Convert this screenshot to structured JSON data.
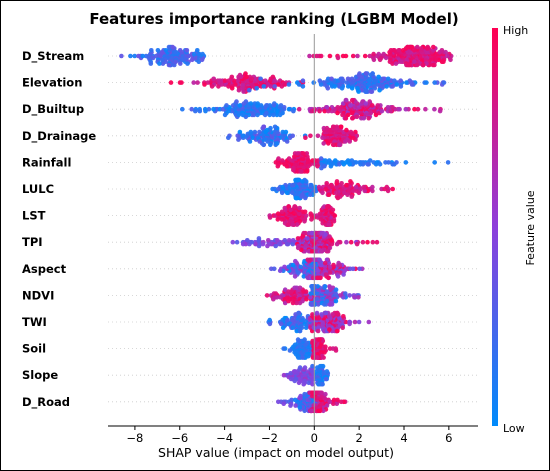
{
  "chart_data": {
    "type": "scatter",
    "subtype": "shap-beeswarm",
    "title": "Features importance ranking (LGBM Model)",
    "xlabel": "SHAP value (impact on model output)",
    "xlim": [
      -9.2,
      7.3
    ],
    "x_ticks": [
      "−8",
      "−6",
      "−4",
      "−2",
      "0",
      "2",
      "4",
      "6"
    ],
    "x_tick_values": [
      -8,
      -6,
      -4,
      -2,
      0,
      2,
      4,
      6
    ],
    "colorbar": {
      "label": "Feature value",
      "high": "High",
      "low": "Low",
      "high_color": "#ff0052",
      "mid_color": "#8e3fdb",
      "low_color": "#008bfb"
    },
    "colors": {
      "high": "#ff0052",
      "low": "#008bfb"
    },
    "grid": false,
    "features": [
      {
        "name": "D_Stream",
        "clusters": [
          {
            "min": -8.7,
            "max": -4.9,
            "center": -6.2,
            "spread": 0.9,
            "count": 140,
            "color_lo": 0.05,
            "color_hi": 0.4
          },
          {
            "min": -0.6,
            "max": 6.2,
            "center": 4.5,
            "spread": 1.1,
            "count": 230,
            "color_lo": 0.7,
            "color_hi": 1.0
          }
        ]
      },
      {
        "name": "Elevation",
        "clusters": [
          {
            "min": -6.4,
            "max": -0.5,
            "center": -3.0,
            "spread": 1.5,
            "count": 150,
            "color_lo": 0.7,
            "color_hi": 1.0
          },
          {
            "min": -3.0,
            "max": 6.1,
            "center": 2.0,
            "spread": 1.8,
            "count": 200,
            "color_lo": 0.0,
            "color_hi": 0.35
          }
        ]
      },
      {
        "name": "D_Builtup",
        "clusters": [
          {
            "min": -6.0,
            "max": -0.6,
            "center": -2.8,
            "spread": 1.2,
            "count": 150,
            "color_lo": 0.0,
            "color_hi": 0.3
          },
          {
            "min": -1.0,
            "max": 5.8,
            "center": 2.0,
            "spread": 1.2,
            "count": 170,
            "color_lo": 0.55,
            "color_hi": 1.0
          }
        ]
      },
      {
        "name": "D_Drainage",
        "clusters": [
          {
            "min": -3.9,
            "max": -0.3,
            "center": -2.2,
            "spread": 0.8,
            "count": 110,
            "color_lo": 0.0,
            "color_hi": 0.4
          },
          {
            "min": -0.5,
            "max": 1.9,
            "center": 1.0,
            "spread": 0.6,
            "count": 110,
            "color_lo": 0.7,
            "color_hi": 1.0
          }
        ]
      },
      {
        "name": "Rainfall",
        "clusters": [
          {
            "min": -1.9,
            "max": 0.3,
            "center": -0.6,
            "spread": 0.55,
            "count": 110,
            "color_lo": 0.8,
            "color_hi": 1.0
          },
          {
            "min": 0.3,
            "max": 6.4,
            "center": 1.5,
            "spread": 1.5,
            "count": 60,
            "color_lo": 0.0,
            "color_hi": 0.25
          }
        ]
      },
      {
        "name": "LULC",
        "clusters": [
          {
            "min": -1.9,
            "max": 0.2,
            "center": -0.7,
            "spread": 0.55,
            "count": 110,
            "color_lo": 0.0,
            "color_hi": 0.3
          },
          {
            "min": 0.2,
            "max": 3.6,
            "center": 1.2,
            "spread": 0.9,
            "count": 100,
            "color_lo": 0.7,
            "color_hi": 1.0
          }
        ]
      },
      {
        "name": "LST",
        "clusters": [
          {
            "min": -2.2,
            "max": 0.0,
            "center": -0.9,
            "spread": 0.6,
            "count": 100,
            "color_lo": 0.75,
            "color_hi": 1.0
          },
          {
            "min": 0.1,
            "max": 1.0,
            "center": 0.6,
            "spread": 0.25,
            "count": 70,
            "color_lo": 0.7,
            "color_hi": 1.0
          }
        ]
      },
      {
        "name": "TPI",
        "clusters": [
          {
            "min": -4.4,
            "max": -0.4,
            "center": -1.8,
            "spread": 1.2,
            "count": 60,
            "color_lo": 0.3,
            "color_hi": 0.6
          },
          {
            "min": -0.8,
            "max": 2.8,
            "center": 0.1,
            "spread": 0.55,
            "count": 170,
            "color_lo": 0.45,
            "color_hi": 1.0
          }
        ]
      },
      {
        "name": "Aspect",
        "clusters": [
          {
            "min": -2.2,
            "max": 0.2,
            "center": -0.4,
            "spread": 0.7,
            "count": 90,
            "color_lo": 0.0,
            "color_hi": 0.6
          },
          {
            "min": -0.3,
            "max": 2.2,
            "center": 0.5,
            "spread": 0.7,
            "count": 110,
            "color_lo": 0.35,
            "color_hi": 1.0
          }
        ]
      },
      {
        "name": "NDVI",
        "clusters": [
          {
            "min": -2.8,
            "max": 0.0,
            "center": -0.9,
            "spread": 0.7,
            "count": 90,
            "color_lo": 0.6,
            "color_hi": 1.0
          },
          {
            "min": -0.2,
            "max": 2.0,
            "center": 0.4,
            "spread": 0.6,
            "count": 120,
            "color_lo": 0.0,
            "color_hi": 0.7
          }
        ]
      },
      {
        "name": "TWI",
        "clusters": [
          {
            "min": -2.2,
            "max": 0.0,
            "center": -0.7,
            "spread": 0.6,
            "count": 80,
            "color_lo": 0.0,
            "color_hi": 0.4
          },
          {
            "min": -0.2,
            "max": 2.5,
            "center": 0.6,
            "spread": 0.65,
            "count": 130,
            "color_lo": 0.4,
            "color_hi": 1.0
          }
        ]
      },
      {
        "name": "Soil",
        "clusters": [
          {
            "min": -1.4,
            "max": 0.0,
            "center": -0.5,
            "spread": 0.35,
            "count": 70,
            "color_lo": 0.0,
            "color_hi": 0.25
          },
          {
            "min": -0.1,
            "max": 1.0,
            "center": 0.2,
            "spread": 0.25,
            "count": 70,
            "color_lo": 0.75,
            "color_hi": 1.0
          }
        ]
      },
      {
        "name": "Slope",
        "clusters": [
          {
            "min": -1.6,
            "max": 0.0,
            "center": -0.5,
            "spread": 0.45,
            "count": 70,
            "color_lo": 0.3,
            "color_hi": 0.6
          },
          {
            "min": -0.1,
            "max": 0.8,
            "center": 0.3,
            "spread": 0.2,
            "count": 45,
            "color_lo": 0.0,
            "color_hi": 0.3
          }
        ]
      },
      {
        "name": "D_Road",
        "clusters": [
          {
            "min": -1.7,
            "max": 0.1,
            "center": -0.4,
            "spread": 0.45,
            "count": 70,
            "color_lo": 0.0,
            "color_hi": 0.5
          },
          {
            "min": -0.2,
            "max": 1.9,
            "center": 0.2,
            "spread": 0.4,
            "count": 110,
            "color_lo": 0.65,
            "color_hi": 1.0
          }
        ]
      }
    ]
  }
}
